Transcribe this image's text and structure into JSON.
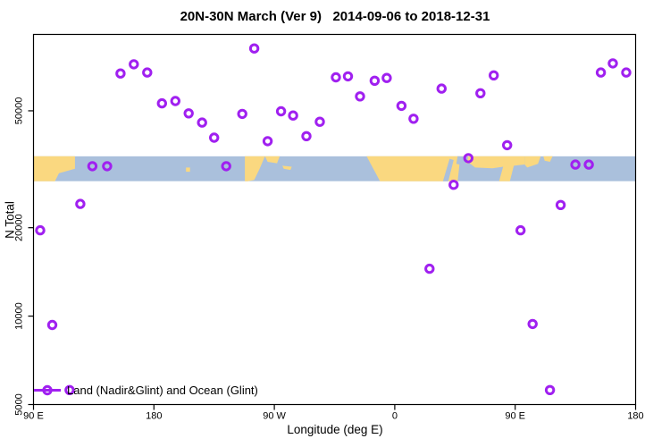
{
  "chart_data": {
    "type": "scatter",
    "title": "20N-30N March (Ver 9)   2014-09-06 to 2018-12-31",
    "xlabel": "Longitude (deg E)",
    "ylabel": "N Total",
    "x_axis": {
      "unit": "degrees east, wrapping eastward from 90E",
      "range": [
        90,
        540
      ],
      "ticks": [
        {
          "value": 90,
          "label": "90 E"
        },
        {
          "value": 180,
          "label": "180"
        },
        {
          "value": 270,
          "label": "90 W"
        },
        {
          "value": 360,
          "label": "0"
        },
        {
          "value": 450,
          "label": "90 E"
        },
        {
          "value": 540,
          "label": "180"
        }
      ]
    },
    "y_axis": {
      "scale": "log",
      "range": [
        5000,
        91000
      ],
      "ticks": [
        {
          "value": 5000,
          "label": "5000"
        },
        {
          "value": 10000,
          "label": "10000"
        },
        {
          "value": 20000,
          "label": "20000"
        },
        {
          "value": 50000,
          "label": "50000"
        }
      ]
    },
    "legend": {
      "label": "Land (Nadir&Glint) and Ocean (Glint)",
      "marker": "line-open-circle"
    },
    "colors": {
      "point": "#A020F0",
      "land": "#FAD880",
      "ocean": "#AAC0DC",
      "axis": "#000000",
      "background": "#FFFFFF"
    },
    "map_band": {
      "description": "20N-30N latitude world-map strip (land/ocean)",
      "value_top": 35000,
      "value_bottom": 28800,
      "land_polygons": [
        [
          [
            90,
            0
          ],
          [
            121,
            0
          ],
          [
            121,
            0.5
          ],
          [
            109,
            0.68
          ],
          [
            106,
            1
          ],
          [
            90,
            1
          ]
        ],
        [
          [
            204,
            0.45
          ],
          [
            207,
            0.45
          ],
          [
            207,
            0.62
          ],
          [
            204,
            0.62
          ]
        ],
        [
          [
            248,
            0
          ],
          [
            263,
            0
          ],
          [
            259,
            0.5
          ],
          [
            255,
            0.95
          ],
          [
            250,
            1
          ],
          [
            248,
            1
          ]
        ],
        [
          [
            263,
            0
          ],
          [
            274,
            0
          ],
          [
            272,
            0.28
          ],
          [
            265,
            0.22
          ]
        ],
        [
          [
            276,
            0.38
          ],
          [
            283,
            0.42
          ],
          [
            282,
            0.55
          ],
          [
            277,
            0.5
          ]
        ],
        [
          [
            339,
            0
          ],
          [
            409,
            0
          ],
          [
            407,
            1
          ],
          [
            349,
            1
          ]
        ],
        [
          [
            409,
            0
          ],
          [
            457,
            0
          ],
          [
            457,
            0.33
          ],
          [
            449,
            0.38
          ],
          [
            446,
            1
          ],
          [
            438,
            1
          ],
          [
            441,
            0.42
          ],
          [
            433,
            0.48
          ],
          [
            420,
            0.45
          ],
          [
            416,
            0.28
          ],
          [
            409,
            0.32
          ]
        ],
        [
          [
            457,
            0
          ],
          [
            469,
            0
          ],
          [
            467,
            0.3
          ],
          [
            459,
            0.45
          ],
          [
            457,
            0.33
          ]
        ],
        [
          [
            471,
            0
          ],
          [
            478,
            0
          ],
          [
            476,
            0.22
          ],
          [
            472,
            0.18
          ]
        ]
      ],
      "sea_notches": [
        [
          [
            396,
            1
          ],
          [
            400,
            1
          ],
          [
            404,
            0.15
          ],
          [
            401,
            0.1
          ]
        ],
        [
          [
            407,
            0
          ],
          [
            415,
            0.02
          ],
          [
            413,
            0.38
          ],
          [
            406,
            0.3
          ]
        ]
      ]
    },
    "points": [
      [
        165,
        72000
      ],
      [
        155,
        67000
      ],
      [
        175,
        67500
      ],
      [
        255,
        81500
      ],
      [
        186,
        53000
      ],
      [
        196,
        54000
      ],
      [
        206,
        49000
      ],
      [
        216,
        45600
      ],
      [
        225,
        40500
      ],
      [
        246,
        48800
      ],
      [
        265,
        39400
      ],
      [
        275,
        49800
      ],
      [
        284,
        48200
      ],
      [
        294,
        41000
      ],
      [
        304,
        45900
      ],
      [
        316,
        65000
      ],
      [
        325,
        65500
      ],
      [
        334,
        56000
      ],
      [
        345,
        63300
      ],
      [
        354,
        64700
      ],
      [
        365,
        52000
      ],
      [
        374,
        47000
      ],
      [
        395,
        59500
      ],
      [
        424,
        57400
      ],
      [
        434,
        66000
      ],
      [
        444,
        38200
      ],
      [
        514,
        67500
      ],
      [
        523,
        72500
      ],
      [
        533,
        67500
      ],
      [
        134,
        32400
      ],
      [
        145,
        32400
      ],
      [
        234,
        32400
      ],
      [
        415,
        34500
      ],
      [
        495,
        32800
      ],
      [
        505,
        32800
      ],
      [
        404,
        28000
      ],
      [
        125,
        24100
      ],
      [
        95,
        19600
      ],
      [
        484,
        23900
      ],
      [
        454,
        19600
      ],
      [
        386,
        14500
      ],
      [
        104,
        9330
      ],
      [
        463,
        9400
      ],
      [
        476,
        5600
      ],
      [
        117,
        5600
      ]
    ]
  }
}
